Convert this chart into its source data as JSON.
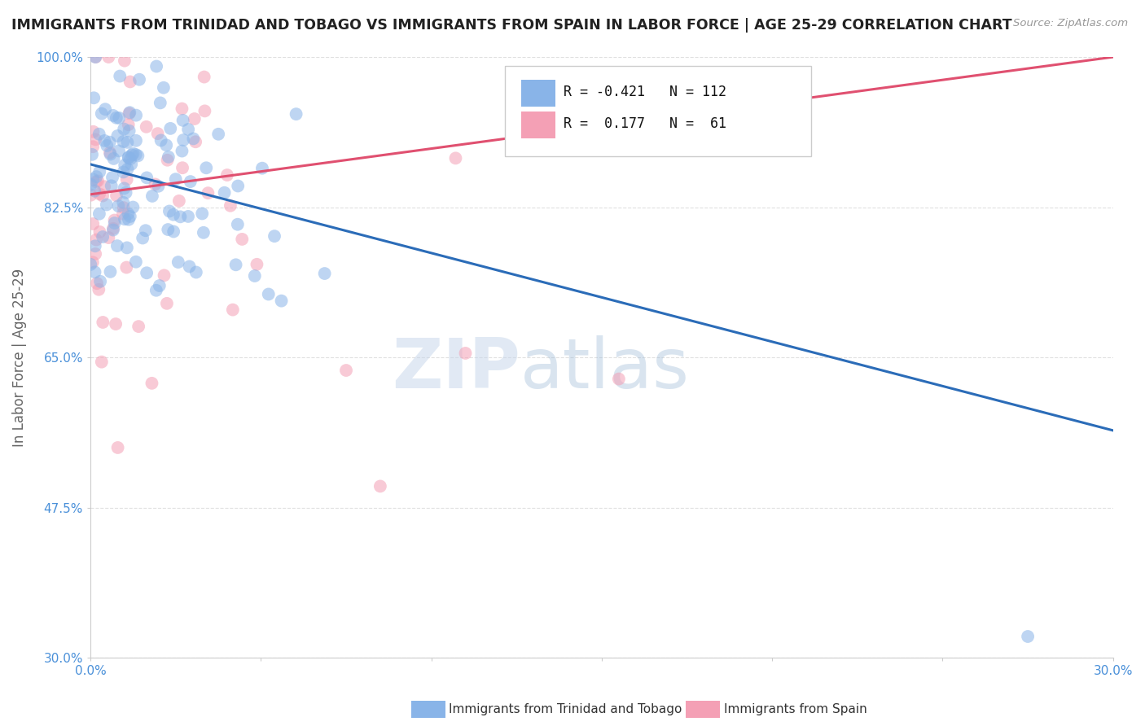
{
  "title": "IMMIGRANTS FROM TRINIDAD AND TOBAGO VS IMMIGRANTS FROM SPAIN IN LABOR FORCE | AGE 25-29 CORRELATION CHART",
  "source": "Source: ZipAtlas.com",
  "ylabel": "In Labor Force | Age 25-29",
  "xlim": [
    0.0,
    0.3
  ],
  "ylim": [
    0.3,
    1.0
  ],
  "xticks": [
    0.0,
    0.05,
    0.1,
    0.15,
    0.2,
    0.25,
    0.3
  ],
  "xticklabels": [
    "0.0%",
    "",
    "",
    "",
    "",
    "",
    "30.0%"
  ],
  "yticks": [
    0.3,
    0.475,
    0.65,
    0.825,
    1.0
  ],
  "yticklabels": [
    "30.0%",
    "47.5%",
    "65.0%",
    "82.5%",
    "100.0%"
  ],
  "legend_entries": [
    {
      "label": "Immigrants from Trinidad and Tobago",
      "color": "#89b4e8",
      "R": "-0.421",
      "N": "112"
    },
    {
      "label": "Immigrants from Spain",
      "color": "#f4a0b0",
      "R": "0.177",
      "N": "61"
    }
  ],
  "watermark_zip": "ZIP",
  "watermark_atlas": "atlas",
  "blue_color": "#89b4e8",
  "pink_color": "#f4a0b5",
  "blue_line_color": "#2b6cb8",
  "pink_line_color": "#e05070",
  "background_color": "#ffffff",
  "grid_color": "#cccccc",
  "title_color": "#222222",
  "axis_color": "#bbbbbb",
  "ylabel_color": "#666666",
  "yticklabel_color": "#4a90d9",
  "xticklabel_color": "#4a90d9",
  "seed": 7,
  "blue_line_x0": 0.0,
  "blue_line_y0": 0.875,
  "blue_line_x1": 0.3,
  "blue_line_y1": 0.565,
  "pink_line_x0": 0.0,
  "pink_line_y0": 0.84,
  "pink_line_x1": 0.3,
  "pink_line_y1": 1.0
}
